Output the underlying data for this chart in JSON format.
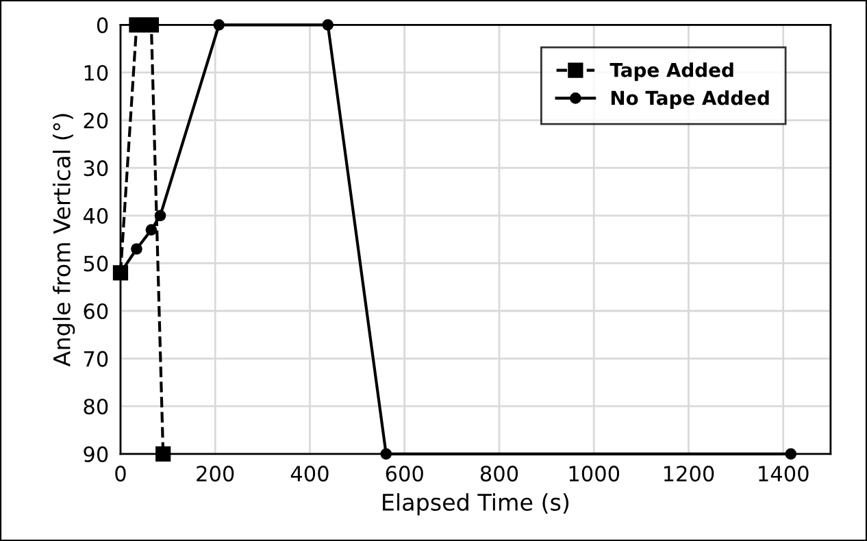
{
  "chart_data": {
    "type": "line",
    "xlabel": "Elapsed Time (s)",
    "ylabel": "Angle from Vertical (°)",
    "xlim": [
      0,
      1500
    ],
    "xticks": [
      0,
      200,
      400,
      600,
      800,
      1000,
      1200,
      1400
    ],
    "ylim": [
      90,
      0
    ],
    "yticks": [
      0,
      10,
      20,
      30,
      40,
      50,
      60,
      70,
      80,
      90
    ],
    "grid": true,
    "legend": "top right",
    "series": [
      {
        "name": "Tape Added",
        "color": "#000000",
        "marker": "square",
        "line_style": "dashed",
        "x": [
          0,
          34,
          65,
          90
        ],
        "values": [
          52,
          0,
          0,
          90
        ]
      },
      {
        "name": "No Tape Added",
        "color": "#000000",
        "marker": "circle",
        "line_style": "solid",
        "x": [
          0,
          34,
          65,
          84,
          208,
          438,
          561,
          1416
        ],
        "values": [
          52,
          47,
          43,
          40,
          0,
          0,
          90,
          90
        ]
      }
    ]
  }
}
